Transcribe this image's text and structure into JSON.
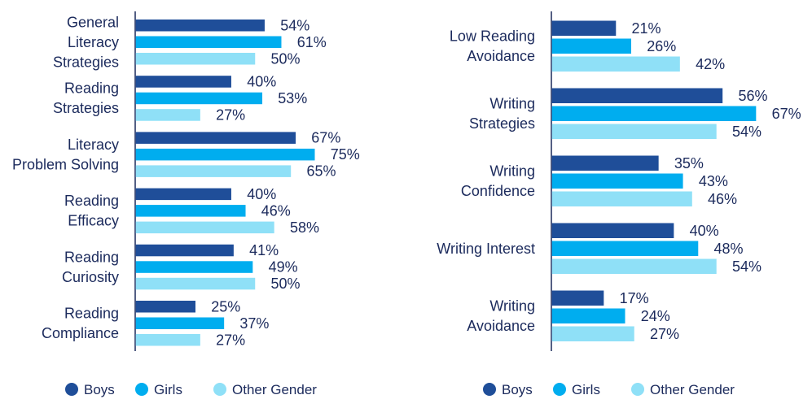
{
  "colors": {
    "boys": "#1f4e99",
    "girls": "#00adef",
    "other": "#8fe0f7",
    "axis": "#1b2a5c",
    "text": "#1b2a5c"
  },
  "chart_data": [
    {
      "type": "bar",
      "orientation": "horizontal",
      "unit": "%",
      "xlim": [
        0,
        100
      ],
      "categories": [
        [
          "General",
          "Literacy",
          "Strategies"
        ],
        [
          "Reading",
          "Strategies"
        ],
        [
          "Literacy",
          "Problem Solving"
        ],
        [
          "Reading",
          "Efficacy"
        ],
        [
          "Reading",
          "Curiosity"
        ],
        [
          "Reading",
          "Compliance"
        ]
      ],
      "series": [
        {
          "name": "Boys",
          "values": [
            54,
            40,
            67,
            40,
            41,
            25
          ]
        },
        {
          "name": "Girls",
          "values": [
            61,
            53,
            75,
            46,
            49,
            37
          ]
        },
        {
          "name": "Other Gender",
          "values": [
            50,
            27,
            65,
            58,
            50,
            27
          ]
        }
      ],
      "legend": "bottom"
    },
    {
      "type": "bar",
      "orientation": "horizontal",
      "unit": "%",
      "xlim": [
        0,
        100
      ],
      "categories": [
        [
          "Low Reading",
          "Avoidance"
        ],
        [
          "Writing",
          "Strategies"
        ],
        [
          "Writing",
          "Confidence"
        ],
        [
          "Writing Interest"
        ],
        [
          "Writing",
          "Avoidance"
        ]
      ],
      "series": [
        {
          "name": "Boys",
          "values": [
            21,
            56,
            35,
            40,
            17
          ]
        },
        {
          "name": "Girls",
          "values": [
            26,
            67,
            43,
            48,
            24
          ]
        },
        {
          "name": "Other Gender",
          "values": [
            42,
            54,
            46,
            54,
            27
          ]
        }
      ],
      "legend": "bottom"
    }
  ]
}
